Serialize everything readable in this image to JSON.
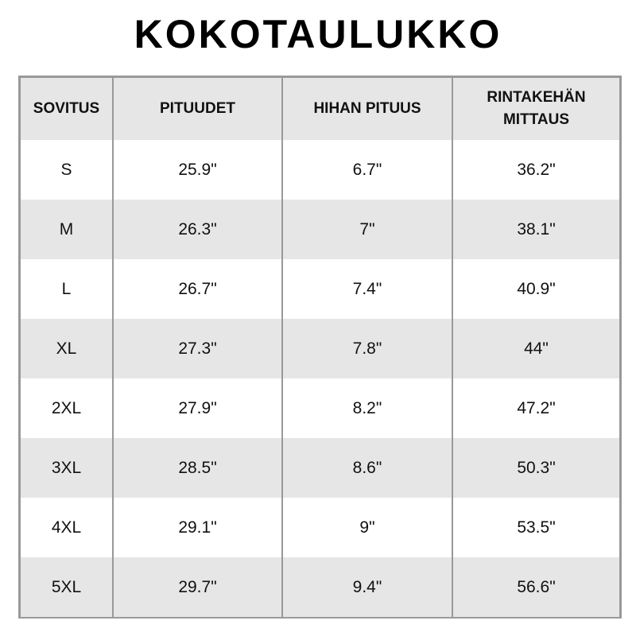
{
  "title": "KOKOTAULUKKO",
  "headers": [
    "SOVITUS",
    "PITUUDET",
    "HIHAN PITUUS",
    "RINTAKEHÄN MITTAUS"
  ],
  "rows": [
    [
      "S",
      "25.9\"",
      "6.7\"",
      "36.2\""
    ],
    [
      "M",
      "26.3\"",
      "7\"",
      "38.1\""
    ],
    [
      "L",
      "26.7\"",
      "7.4\"",
      "40.9\""
    ],
    [
      "XL",
      "27.3\"",
      "7.8\"",
      "44\""
    ],
    [
      "2XL",
      "27.9\"",
      "8.2\"",
      "47.2\""
    ],
    [
      "3XL",
      "28.5\"",
      "8.6\"",
      "50.3\""
    ],
    [
      "4XL",
      "29.1\"",
      "9\"",
      "53.5\""
    ],
    [
      "5XL",
      "29.7\"",
      "9.4\"",
      "56.6\""
    ]
  ],
  "colors": {
    "border": "#999999",
    "stripe": "#e6e6e6"
  }
}
